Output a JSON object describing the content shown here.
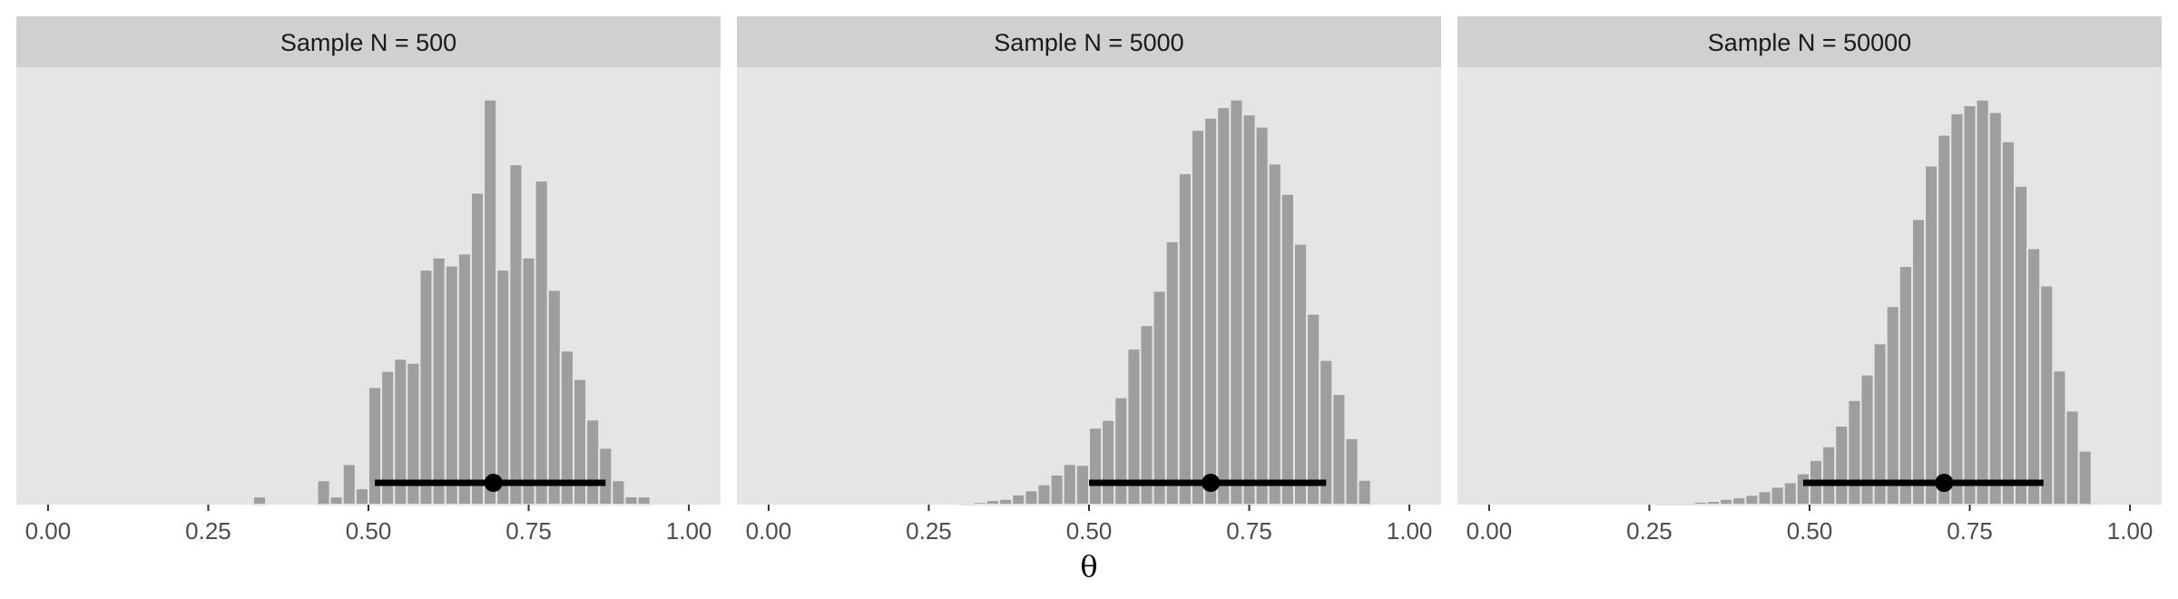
{
  "figure": {
    "xlabel": "θ",
    "colors": {
      "panel_background": "#e5e5e5",
      "strip_background": "#d0d0d0",
      "bar_fill": "#9e9e9e",
      "bar_outline": "#e5e5e5",
      "interval": "#000000",
      "point": "#000000",
      "tick_label": "#4d4d4d"
    }
  },
  "chart_data": [
    {
      "type": "bar",
      "title": "Sample N = 500",
      "xlim": [
        0,
        1
      ],
      "ylim": [
        0,
        1.08
      ],
      "x_ticks": [
        "0.00",
        "0.25",
        "0.50",
        "0.75",
        "1.00"
      ],
      "x_tick_values": [
        0,
        0.25,
        0.5,
        0.75,
        1.0
      ],
      "y_axis_shown": false,
      "grid": false,
      "bin_width": 0.02,
      "bin_centers": [
        0.33,
        0.43,
        0.45,
        0.47,
        0.49,
        0.51,
        0.53,
        0.55,
        0.57,
        0.59,
        0.61,
        0.63,
        0.65,
        0.67,
        0.69,
        0.71,
        0.73,
        0.75,
        0.77,
        0.79,
        0.81,
        0.83,
        0.85,
        0.87,
        0.89,
        0.91,
        0.93
      ],
      "values": [
        0.02,
        0.06,
        0.02,
        0.1,
        0.04,
        0.29,
        0.33,
        0.36,
        0.35,
        0.58,
        0.61,
        0.59,
        0.62,
        0.77,
        1.0,
        0.58,
        0.84,
        0.61,
        0.8,
        0.53,
        0.38,
        0.31,
        0.21,
        0.14,
        0.06,
        0.02,
        0.02
      ],
      "interval": {
        "low": 0.51,
        "high": 0.87
      },
      "point_estimate": 0.695
    },
    {
      "type": "bar",
      "title": "Sample N = 5000",
      "xlim": [
        0,
        1
      ],
      "ylim": [
        0,
        1.08
      ],
      "x_ticks": [
        "0.00",
        "0.25",
        "0.50",
        "0.75",
        "1.00"
      ],
      "x_tick_values": [
        0,
        0.25,
        0.5,
        0.75,
        1.0
      ],
      "y_axis_shown": false,
      "grid": false,
      "bin_width": 0.02,
      "bin_centers": [
        0.31,
        0.33,
        0.35,
        0.37,
        0.39,
        0.41,
        0.43,
        0.45,
        0.47,
        0.49,
        0.51,
        0.53,
        0.55,
        0.57,
        0.59,
        0.61,
        0.63,
        0.65,
        0.67,
        0.69,
        0.71,
        0.73,
        0.75,
        0.77,
        0.79,
        0.81,
        0.83,
        0.85,
        0.87,
        0.89,
        0.91,
        0.93
      ],
      "values": [
        0.003,
        0.006,
        0.011,
        0.014,
        0.025,
        0.035,
        0.05,
        0.074,
        0.1,
        0.098,
        0.19,
        0.209,
        0.265,
        0.385,
        0.443,
        0.528,
        0.65,
        0.818,
        0.925,
        0.955,
        0.981,
        1.0,
        0.963,
        0.933,
        0.842,
        0.767,
        0.644,
        0.471,
        0.357,
        0.273,
        0.164,
        0.061
      ],
      "interval": {
        "low": 0.5,
        "high": 0.87
      },
      "point_estimate": 0.69
    },
    {
      "type": "bar",
      "title": "Sample N = 50000",
      "xlim": [
        0,
        1
      ],
      "ylim": [
        0,
        1.08
      ],
      "x_ticks": [
        "0.00",
        "0.25",
        "0.50",
        "0.75",
        "1.00"
      ],
      "x_tick_values": [
        0,
        0.25,
        0.5,
        0.75,
        1.0
      ],
      "y_axis_shown": false,
      "grid": false,
      "bin_width": 0.02,
      "bin_centers": [
        0.27,
        0.29,
        0.31,
        0.33,
        0.35,
        0.37,
        0.39,
        0.41,
        0.43,
        0.45,
        0.47,
        0.49,
        0.51,
        0.53,
        0.55,
        0.57,
        0.59,
        0.61,
        0.63,
        0.65,
        0.67,
        0.69,
        0.71,
        0.73,
        0.75,
        0.77,
        0.79,
        0.81,
        0.83,
        0.85,
        0.87,
        0.89,
        0.91,
        0.93
      ],
      "values": [
        0.002,
        0.003,
        0.004,
        0.007,
        0.009,
        0.014,
        0.018,
        0.024,
        0.033,
        0.044,
        0.055,
        0.077,
        0.11,
        0.144,
        0.195,
        0.258,
        0.321,
        0.398,
        0.49,
        0.589,
        0.705,
        0.837,
        0.913,
        0.966,
        0.986,
        1.0,
        0.969,
        0.897,
        0.787,
        0.633,
        0.541,
        0.331,
        0.232,
        0.133
      ],
      "interval": {
        "low": 0.49,
        "high": 0.865
      },
      "point_estimate": 0.71
    }
  ]
}
